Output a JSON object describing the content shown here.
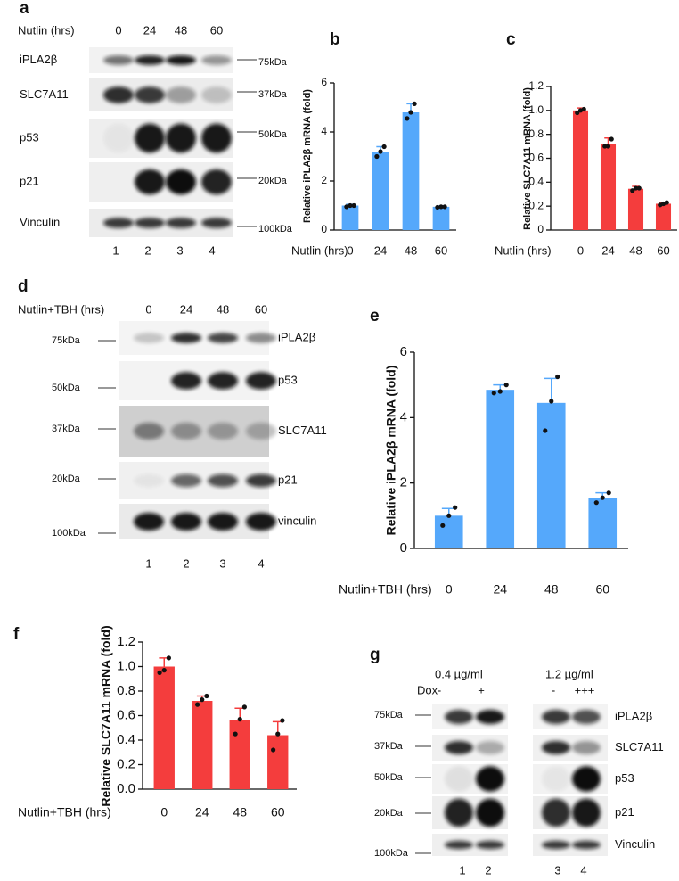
{
  "panels": {
    "a": {
      "label": "a",
      "treatment": "Nutlin (hrs)",
      "lanes": [
        "0",
        "24",
        "48",
        "60"
      ],
      "rows": [
        {
          "protein": "iPLA2β",
          "marker": "75kDa"
        },
        {
          "protein": "SLC7A11",
          "marker": "37kDa"
        },
        {
          "protein": "p53",
          "marker": "50kDa"
        },
        {
          "protein": "p21",
          "marker": "20kDa"
        },
        {
          "protein": "Vinculin",
          "marker": "100kDa"
        }
      ],
      "lane_numbers": [
        "1",
        "2",
        "3",
        "4"
      ]
    },
    "d": {
      "label": "d",
      "treatment": "Nutlin+TBH (hrs)",
      "lanes": [
        "0",
        "24",
        "48",
        "60"
      ],
      "rows": [
        {
          "protein": "iPLA2β",
          "marker": "75kDa"
        },
        {
          "protein": "p53",
          "marker": "50kDa"
        },
        {
          "protein": "SLC7A11",
          "marker": "37kDa"
        },
        {
          "protein": "p21",
          "marker": "20kDa"
        },
        {
          "protein": "vinculin",
          "marker": "100kDa"
        }
      ],
      "lane_numbers": [
        "1",
        "2",
        "3",
        "4"
      ]
    },
    "g": {
      "label": "g",
      "doses": [
        "0.4 µg/ml",
        "1.2 µg/ml"
      ],
      "treatment": "Dox",
      "lanes": [
        "-",
        "+",
        "-",
        "+++"
      ],
      "rows": [
        {
          "protein": "iPLA2β",
          "marker": "75kDa"
        },
        {
          "protein": "SLC7A11",
          "marker": "37kDa"
        },
        {
          "protein": "p53",
          "marker": "50kDa"
        },
        {
          "protein": "p21",
          "marker": "20kDa"
        },
        {
          "protein": "Vinculin",
          "marker": "100kDa"
        }
      ],
      "lane_numbers": [
        "1",
        "2",
        "3",
        "4"
      ]
    }
  },
  "chart_data": [
    {
      "type": "bar",
      "panel": "b",
      "y_label": "Relative iPLA2β mRNA (fold)",
      "x_label": "Nutlin (hrs)",
      "categories": [
        "0",
        "24",
        "48",
        "60"
      ],
      "values": [
        1.0,
        3.2,
        4.8,
        0.95
      ],
      "errors": [
        0.05,
        0.2,
        0.35,
        0.03
      ],
      "points": [
        [
          0.95,
          1.0,
          1.0
        ],
        [
          3.0,
          3.2,
          3.4
        ],
        [
          4.55,
          4.8,
          5.15
        ],
        [
          0.93,
          0.95,
          0.95
        ]
      ],
      "color": "#55a8fb",
      "ylim": [
        0,
        6
      ],
      "yticks": [
        0,
        2,
        4,
        6
      ]
    },
    {
      "type": "bar",
      "panel": "c",
      "y_label": "Relative SLC7A11 mRNA (fold)",
      "x_label": "Nutlin (hrs)",
      "categories": [
        "0",
        "24",
        "48",
        "60"
      ],
      "values": [
        1.0,
        0.72,
        0.345,
        0.22
      ],
      "errors": [
        0.02,
        0.05,
        0.02,
        0.01
      ],
      "points": [
        [
          0.98,
          1.0,
          1.01
        ],
        [
          0.7,
          0.7,
          0.76
        ],
        [
          0.33,
          0.35,
          0.35
        ],
        [
          0.21,
          0.22,
          0.23
        ]
      ],
      "color": "#f43d3d",
      "ylim": [
        0,
        1.2
      ],
      "yticks": [
        0,
        0.2,
        0.4,
        0.6,
        0.8,
        {
          "value": 1,
          "label": "1.0"
        },
        1.2
      ]
    },
    {
      "type": "bar",
      "panel": "e",
      "y_label": "Relative iPLA2β mRNA (fold)",
      "x_label": "Nutlin+TBH (hrs)",
      "categories": [
        "0",
        "24",
        "48",
        "60"
      ],
      "values": [
        1.0,
        4.85,
        4.45,
        1.55
      ],
      "errors": [
        0.22,
        0.15,
        0.75,
        0.15
      ],
      "points": [
        [
          0.7,
          1.0,
          1.25
        ],
        [
          4.75,
          4.8,
          5.0
        ],
        [
          3.6,
          4.5,
          5.25
        ],
        [
          1.4,
          1.55,
          1.7
        ]
      ],
      "color": "#55a8fb",
      "ylim": [
        0,
        6
      ],
      "yticks": [
        0,
        2,
        4,
        6
      ]
    },
    {
      "type": "bar",
      "panel": "f",
      "y_label": "Relative SLC7A11 mRNA (fold)",
      "x_label": "Nutlin+TBH (hrs)",
      "categories": [
        "0",
        "24",
        "48",
        "60"
      ],
      "values": [
        1.0,
        0.72,
        0.56,
        0.44
      ],
      "errors": [
        0.07,
        0.04,
        0.1,
        0.11
      ],
      "points": [
        [
          0.95,
          0.97,
          1.07
        ],
        [
          0.69,
          0.73,
          0.76
        ],
        [
          0.45,
          0.57,
          0.67
        ],
        [
          0.32,
          0.45,
          0.56
        ]
      ],
      "color": "#f43d3d",
      "ylim": [
        0,
        1.2
      ],
      "yticks": [
        {
          "value": 0,
          "label": "0.0"
        },
        0.2,
        0.4,
        0.6,
        0.8,
        {
          "value": 1,
          "label": "1.0"
        },
        1.2
      ]
    }
  ]
}
